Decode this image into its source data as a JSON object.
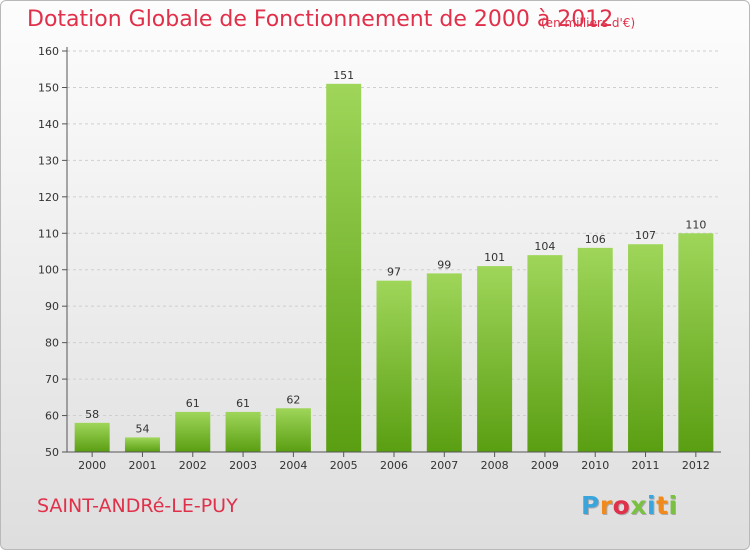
{
  "colors": {
    "title": "#e0304a",
    "bar_top": "#9fd65a",
    "bar_bottom": "#5a9e12",
    "grid": "#cfcfcf",
    "axis": "#555555"
  },
  "logo": {
    "letters": [
      "P",
      "r",
      "o",
      "x",
      "i",
      "t",
      "i"
    ],
    "colors": [
      "#3aa5dc",
      "#f08a1c",
      "#e0304a",
      "#7ac142",
      "#3aa5dc",
      "#f08a1c",
      "#7ac142"
    ]
  },
  "commune": "SAINT-ANDRé-LE-PUY",
  "chart_data": {
    "type": "bar",
    "title": "Dotation Globale de Fonctionnement de 2000 à 2012",
    "subtitle": "(en milliers d'€)",
    "categories": [
      "2000",
      "2001",
      "2002",
      "2003",
      "2004",
      "2005",
      "2006",
      "2007",
      "2008",
      "2009",
      "2010",
      "2011",
      "2012"
    ],
    "values": [
      58,
      54,
      61,
      61,
      62,
      151,
      97,
      99,
      101,
      104,
      106,
      107,
      110
    ],
    "ylim": [
      50,
      160
    ],
    "yticks": [
      50,
      60,
      70,
      80,
      90,
      100,
      110,
      120,
      130,
      140,
      150,
      160
    ],
    "grid": "horizontal dashed",
    "data_labels": true
  }
}
